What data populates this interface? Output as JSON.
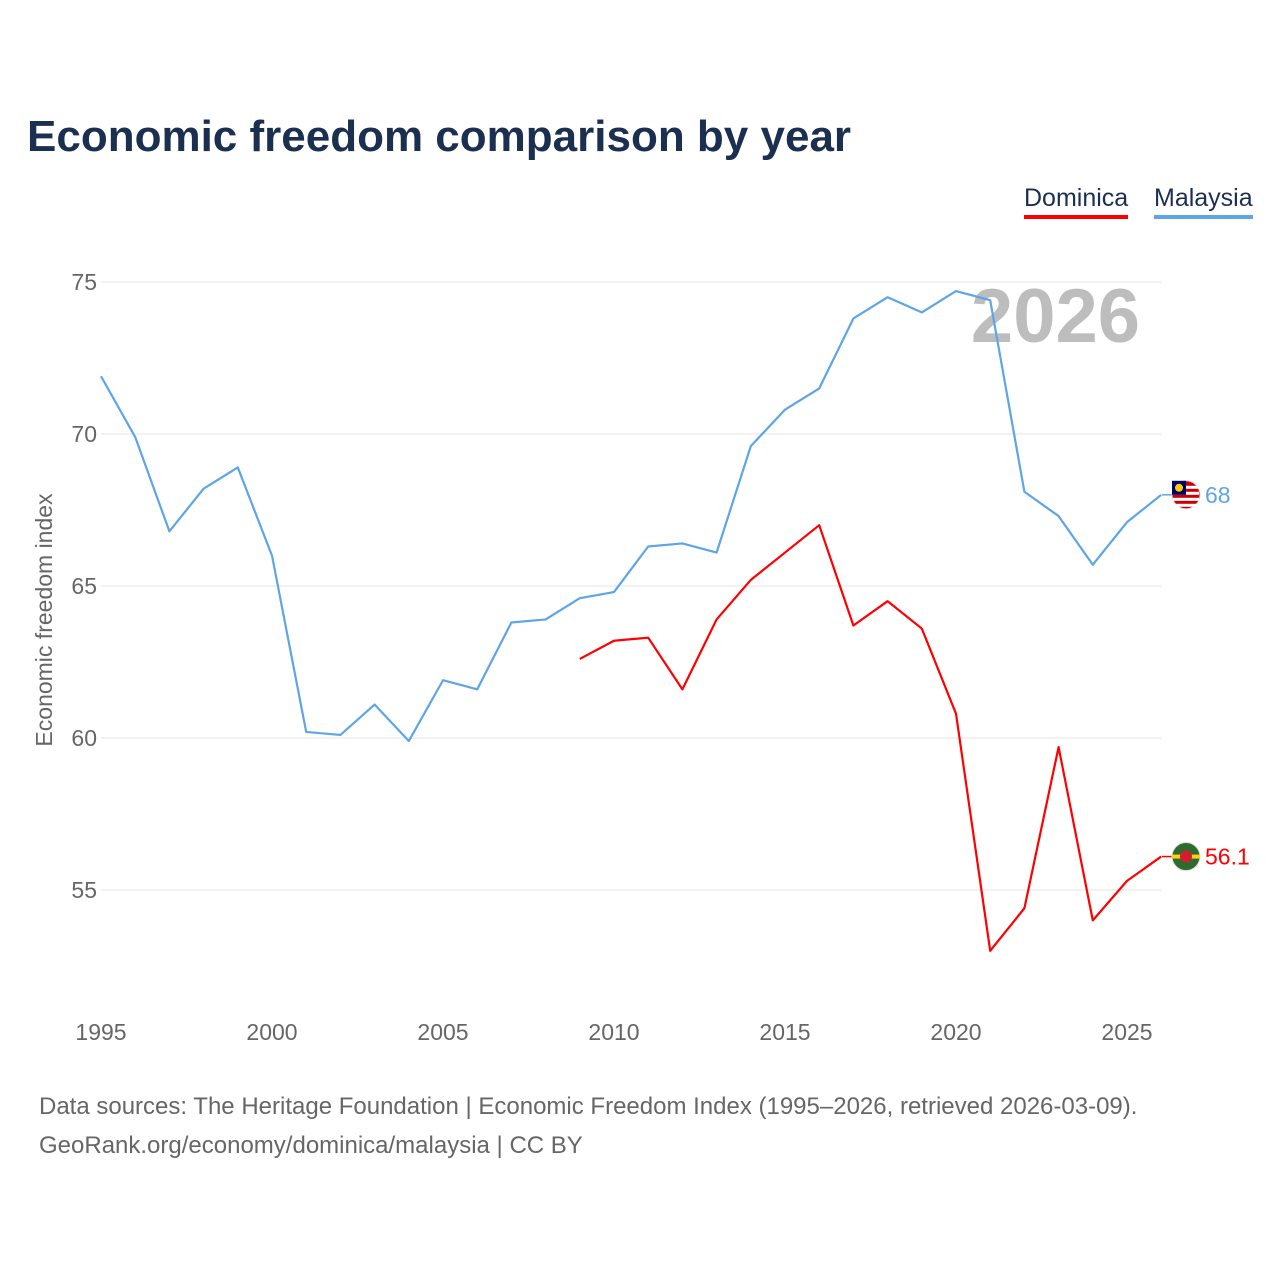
{
  "chart_data": {
    "type": "line",
    "title": "Economic freedom comparison by year",
    "xlabel": "",
    "ylabel": "Economic freedom index",
    "xlim": [
      1995,
      2026
    ],
    "ylim": [
      51,
      76
    ],
    "yticks": [
      55,
      60,
      65,
      70,
      75
    ],
    "xticks": [
      1995,
      2000,
      2005,
      2010,
      2015,
      2020,
      2025
    ],
    "grid": true,
    "legend": "top-right",
    "watermark_year": "2026",
    "series": [
      {
        "name": "Dominica",
        "color": "#ff0000",
        "end_label": "56.1",
        "x": [
          2009,
          2010,
          2011,
          2012,
          2013,
          2014,
          2015,
          2016,
          2017,
          2018,
          2019,
          2020,
          2021,
          2022,
          2023,
          2024,
          2025,
          2026
        ],
        "values": [
          62.6,
          63.2,
          63.3,
          61.6,
          63.9,
          65.2,
          66.1,
          67.0,
          63.7,
          64.5,
          63.6,
          60.8,
          53.0,
          54.4,
          59.7,
          54.0,
          55.3,
          56.1
        ]
      },
      {
        "name": "Malaysia",
        "color": "#5ea5e8",
        "end_label": "68",
        "x": [
          1995,
          1996,
          1997,
          1998,
          1999,
          2000,
          2001,
          2002,
          2003,
          2004,
          2005,
          2006,
          2007,
          2008,
          2009,
          2010,
          2011,
          2012,
          2013,
          2014,
          2015,
          2016,
          2017,
          2018,
          2019,
          2020,
          2021,
          2022,
          2023,
          2024,
          2025,
          2026
        ],
        "values": [
          71.9,
          69.9,
          66.8,
          68.2,
          68.9,
          66.0,
          60.2,
          60.1,
          61.1,
          59.9,
          61.9,
          61.6,
          63.8,
          63.9,
          64.6,
          64.8,
          66.3,
          66.4,
          66.1,
          69.6,
          70.8,
          71.5,
          73.8,
          74.5,
          74.0,
          74.7,
          74.4,
          68.1,
          67.3,
          65.7,
          67.1,
          68.0
        ]
      }
    ]
  },
  "footer": {
    "line1": "Data sources: The Heritage Foundation | Economic Freedom Index (1995–2026, retrieved 2026-03-09).",
    "line2": "GeoRank.org/economy/dominica/malaysia | CC BY"
  }
}
